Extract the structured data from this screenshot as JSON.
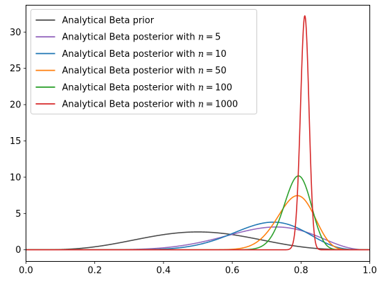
{
  "chart_data": {
    "type": "line",
    "title": "",
    "xlabel": "",
    "ylabel": "",
    "xlim": [
      0.0,
      1.0
    ],
    "ylim": [
      -1.6,
      33.7
    ],
    "x_ticks": [
      "0.0",
      "0.2",
      "0.4",
      "0.6",
      "0.8",
      "1.0"
    ],
    "y_ticks": [
      "0",
      "5",
      "10",
      "15",
      "20",
      "25",
      "30"
    ],
    "legend_position": "upper-left",
    "grid": false,
    "series": [
      {
        "name": "Analytical Beta prior",
        "legend_text": "Analytical Beta prior",
        "color": "#4a4a4a",
        "distribution": "beta",
        "alpha": 5,
        "beta": 5,
        "x": [
          0,
          0.05,
          0.1,
          0.15,
          0.2,
          0.25,
          0.3,
          0.35,
          0.4,
          0.45,
          0.5,
          0.55,
          0.6,
          0.65,
          0.7,
          0.75,
          0.8,
          0.85,
          0.9,
          0.95,
          1.0
        ],
        "y": [
          0,
          0.005,
          0.04,
          0.16,
          0.41,
          0.79,
          1.23,
          1.69,
          2.07,
          2.36,
          2.46,
          2.36,
          2.07,
          1.69,
          1.23,
          0.79,
          0.41,
          0.16,
          0.04,
          0.005,
          0
        ]
      },
      {
        "name": "Analytical Beta posterior with n = 5",
        "legend_prefix": "Analytical Beta posterior with ",
        "legend_math": "n = 5",
        "color": "#9467bd",
        "distribution": "beta",
        "alpha": 9,
        "beta": 4,
        "x": [
          0.2,
          0.3,
          0.4,
          0.5,
          0.6,
          0.65,
          0.7,
          0.75,
          0.8,
          0.85,
          0.9,
          0.95,
          1.0
        ],
        "y": [
          0.01,
          0.1,
          0.48,
          1.38,
          2.66,
          3.08,
          3.2,
          2.91,
          2.16,
          1.17,
          0.39,
          0.05,
          0
        ]
      },
      {
        "name": "Analytical Beta posterior with n = 10",
        "legend_prefix": "Analytical Beta posterior with ",
        "legend_math": "n = 10",
        "color": "#1f77b4",
        "distribution": "beta",
        "alpha": 13.3,
        "beta": 5.8,
        "x": [
          0.4,
          0.5,
          0.6,
          0.65,
          0.7,
          0.72,
          0.75,
          0.8,
          0.85,
          0.9,
          0.95,
          1.0
        ],
        "y": [
          0.09,
          0.67,
          2.23,
          3.17,
          3.8,
          3.86,
          3.71,
          2.81,
          1.41,
          0.39,
          0.03,
          0
        ]
      },
      {
        "name": "Analytical Beta posterior with n = 50",
        "legend_prefix": "Analytical Beta posterior with ",
        "legend_math": "n = 50",
        "color": "#ff7f0e",
        "distribution": "beta",
        "alpha": 46,
        "beta": 13,
        "x": [
          0.6,
          0.65,
          0.7,
          0.75,
          0.78,
          0.8,
          0.85,
          0.9,
          0.95,
          1.0
        ],
        "y": [
          0.15,
          0.79,
          2.77,
          5.84,
          7.38,
          7.5,
          4.87,
          1.23,
          0.04,
          0
        ]
      },
      {
        "name": "Analytical Beta posterior with n = 100",
        "legend_prefix": "Analytical Beta posterior with ",
        "legend_math": "n = 100",
        "color": "#2ca02c",
        "distribution": "beta",
        "alpha": 85,
        "beta": 23,
        "x": [
          0.65,
          0.7,
          0.75,
          0.78,
          0.79,
          0.8,
          0.85,
          0.9,
          0.95,
          1.0
        ],
        "y": [
          0.17,
          1.48,
          6.16,
          9.61,
          10.12,
          9.88,
          3.31,
          0.11,
          0,
          0
        ]
      },
      {
        "name": "Analytical Beta posterior with n = 1000",
        "legend_prefix": "Analytical Beta posterior with ",
        "legend_math": "n = 1000",
        "color": "#d62728",
        "distribution": "beta",
        "alpha": 812,
        "beta": 190,
        "x": [
          0.77,
          0.79,
          0.8,
          0.81,
          0.82,
          0.83,
          0.85
        ],
        "y": [
          0.06,
          9.43,
          24.82,
          32.23,
          20.4,
          6.28,
          0.06
        ]
      }
    ]
  }
}
